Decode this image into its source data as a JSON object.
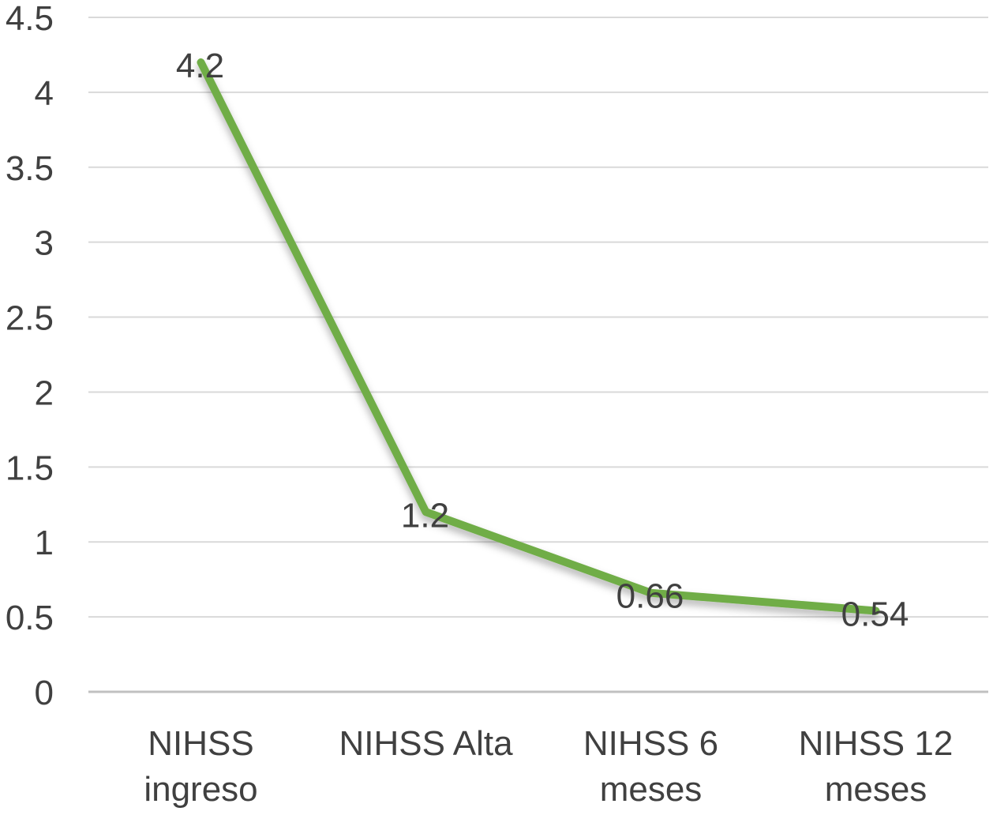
{
  "chart": {
    "background_color": "#ffffff",
    "line_color": "#70AD47",
    "text_color": "#404040",
    "gridline_color": "#D9D9D9",
    "axis_line_color": "#C0C0C0"
  },
  "chart_data": {
    "type": "line",
    "title": "",
    "xlabel": "",
    "ylabel": "",
    "categories": [
      "NIHSS ingreso",
      "NIHSS Alta",
      "NIHSS 6 meses",
      "NIHSS 12 meses"
    ],
    "category_lines": [
      [
        "NIHSS",
        "ingreso"
      ],
      [
        "NIHSS Alta"
      ],
      [
        "NIHSS 6",
        "meses"
      ],
      [
        "NIHSS 12",
        "meses"
      ]
    ],
    "series": [
      {
        "name": "NIHSS",
        "values": [
          4.2,
          1.2,
          0.66,
          0.54
        ]
      }
    ],
    "values": [
      4.2,
      1.2,
      0.66,
      0.54
    ],
    "data_labels": [
      "4.2",
      "1.2",
      "0.66",
      "0.54"
    ],
    "ylim": [
      0,
      4.5
    ],
    "y_ticks": [
      4.5,
      4,
      3.5,
      3,
      2.5,
      2,
      1.5,
      1,
      0.5,
      0
    ],
    "y_tick_labels": [
      "4.5",
      "4",
      "3.5",
      "3",
      "2.5",
      "2",
      "1.5",
      "1",
      "0.5",
      "0"
    ],
    "grid": true,
    "legend": "none"
  }
}
